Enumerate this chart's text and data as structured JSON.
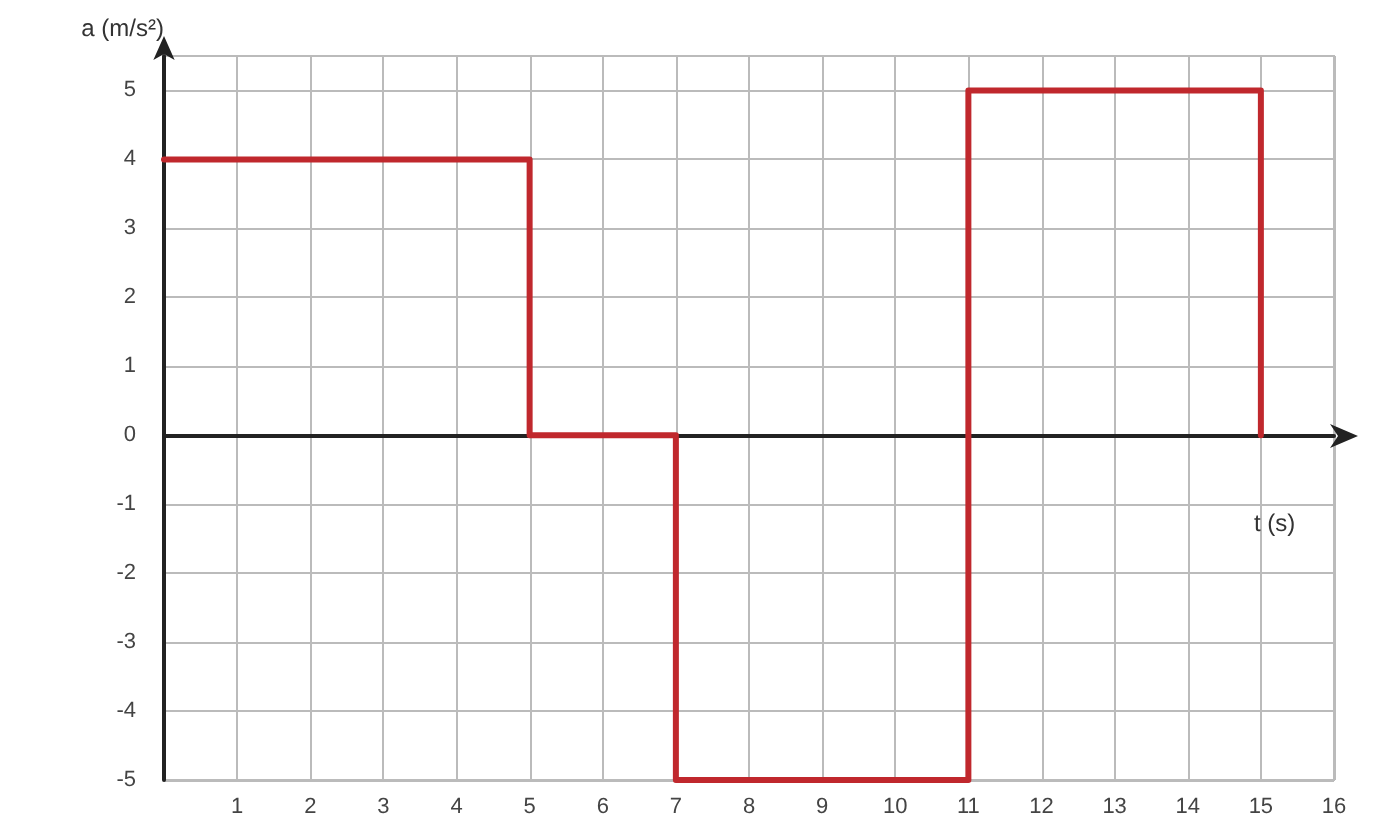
{
  "chart_data": {
    "type": "line",
    "xlabel": "t (s)",
    "ylabel": "a (m/s²)",
    "series": [
      {
        "color": "#c0282d",
        "x": [
          0,
          5,
          5,
          7,
          7,
          11,
          11,
          15,
          15
        ],
        "values": [
          4,
          4,
          0,
          0,
          -5,
          -5,
          5,
          5,
          0
        ]
      }
    ],
    "xlim": [
      0,
      16
    ],
    "xticks": [
      {
        "value": 0,
        "label": null
      },
      1,
      2,
      3,
      4,
      5,
      6,
      7,
      8,
      9,
      10,
      11,
      12,
      13,
      14,
      15,
      16
    ],
    "ylim": [
      -5,
      5.5
    ],
    "yticks": [
      -5,
      -4,
      -3,
      -2,
      -1,
      0,
      1,
      2,
      3,
      4,
      5
    ],
    "grid": true,
    "marker": "none",
    "line_style": "solid"
  }
}
